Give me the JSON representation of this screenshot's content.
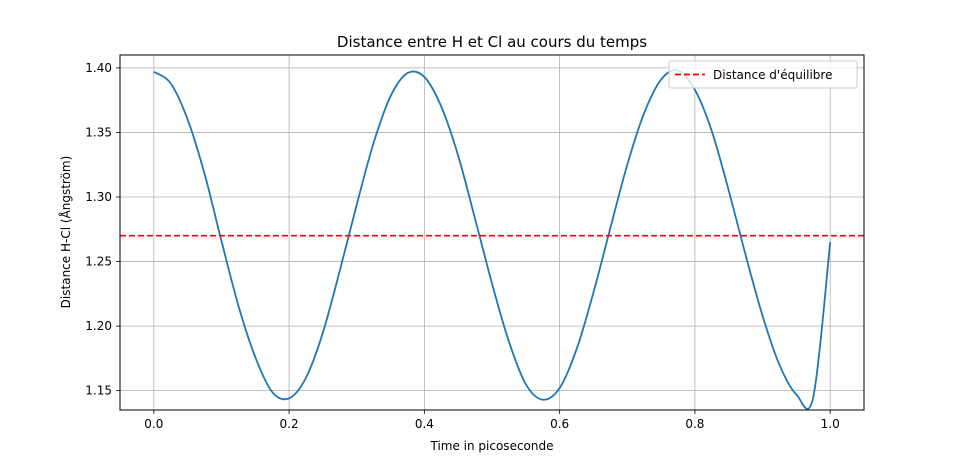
{
  "chart_data": {
    "type": "line",
    "title": "Distance entre H et Cl au cours du temps",
    "xlabel": "Time in picoseconde",
    "ylabel": "Distance H-Cl (Ångström)",
    "xlim": [
      -0.05,
      1.05
    ],
    "ylim": [
      1.135,
      1.41
    ],
    "xticks": [
      0.0,
      0.2,
      0.4,
      0.6,
      0.8,
      1.0
    ],
    "xtick_labels": [
      "0.0",
      "0.2",
      "0.4",
      "0.6",
      "0.8",
      "1.0"
    ],
    "yticks": [
      1.15,
      1.2,
      1.25,
      1.3,
      1.35,
      1.4
    ],
    "ytick_labels": [
      "1.15",
      "1.20",
      "1.25",
      "1.30",
      "1.35",
      "1.40"
    ],
    "grid": true,
    "legend_position": "top-right",
    "series": [
      {
        "color": "#1f77b4",
        "style": "solid",
        "x": [
          0.0,
          0.025,
          0.05,
          0.075,
          0.1,
          0.125,
          0.15,
          0.175,
          0.2,
          0.225,
          0.25,
          0.275,
          0.3,
          0.325,
          0.35,
          0.375,
          0.4,
          0.425,
          0.45,
          0.475,
          0.5,
          0.525,
          0.55,
          0.575,
          0.6,
          0.625,
          0.65,
          0.675,
          0.7,
          0.725,
          0.75,
          0.775,
          0.8,
          0.825,
          0.85,
          0.875,
          0.9,
          0.925,
          0.95,
          0.975,
          1.0
        ],
        "values": [
          1.397,
          1.388,
          1.36,
          1.318,
          1.266,
          1.216,
          1.176,
          1.149,
          1.144,
          1.16,
          1.195,
          1.243,
          1.294,
          1.342,
          1.378,
          1.396,
          1.393,
          1.37,
          1.332,
          1.283,
          1.233,
          1.188,
          1.155,
          1.143,
          1.152,
          1.182,
          1.226,
          1.276,
          1.325,
          1.365,
          1.391,
          1.398,
          1.383,
          1.351,
          1.305,
          1.255,
          1.208,
          1.17,
          1.147,
          1.145,
          1.265
        ]
      },
      {
        "name": "Distance d'équilibre",
        "color": "#ff0000",
        "style": "dashed",
        "constant": 1.27
      }
    ]
  }
}
